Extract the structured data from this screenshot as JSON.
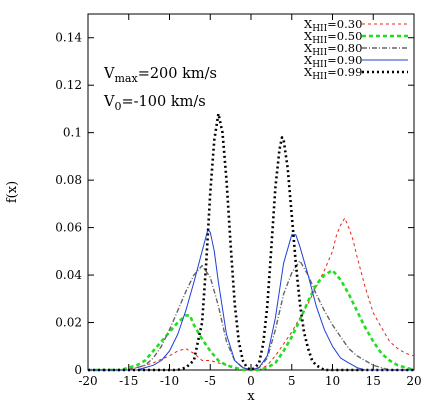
{
  "chart_data": {
    "type": "line",
    "xlabel": "x",
    "ylabel": "f(x)",
    "xlim": [
      -20,
      20
    ],
    "ylim": [
      0,
      0.15
    ],
    "xticks": [
      -20,
      -15,
      -10,
      -5,
      0,
      5,
      10,
      15,
      20
    ],
    "yticks": [
      0,
      0.02,
      0.04,
      0.06,
      0.08,
      0.1,
      0.12,
      0.14
    ],
    "xtick_labels": [
      "-20",
      "-15",
      "-10",
      "-5",
      "0",
      "5",
      "10",
      "15",
      "20"
    ],
    "ytick_labels": [
      "0",
      "0.02",
      "0.04",
      "0.06",
      "0.08",
      "0.1",
      "0.12",
      "0.14"
    ],
    "grid": false,
    "legend_position": "top-right",
    "annotations": [
      {
        "main": "V",
        "sub": "max",
        "rest": "=200 km/s"
      },
      {
        "main": "V",
        "sub": "0",
        "rest": "=-100 km/s"
      }
    ],
    "series": [
      {
        "name": "X_HII=0.30",
        "label": {
          "main": "X",
          "sub": "HII",
          "rest": "=0.30"
        },
        "color": "#e8251d",
        "style": "dashed-thin",
        "points": [
          [
            -20,
            0
          ],
          [
            -16,
            0
          ],
          [
            -14,
            0.001
          ],
          [
            -12,
            0.003
          ],
          [
            -10,
            0.006
          ],
          [
            -9,
            0.008
          ],
          [
            -8,
            0.009
          ],
          [
            -7,
            0.007
          ],
          [
            -6,
            0.004
          ],
          [
            -5,
            0.004
          ],
          [
            -4,
            0.003
          ],
          [
            -3,
            0.002
          ],
          [
            -2,
            0.001
          ],
          [
            -1,
            0
          ],
          [
            1,
            0
          ],
          [
            2,
            0.002
          ],
          [
            3,
            0.006
          ],
          [
            4,
            0.011
          ],
          [
            5,
            0.016
          ],
          [
            6,
            0.022
          ],
          [
            7,
            0.028
          ],
          [
            8,
            0.035
          ],
          [
            9,
            0.042
          ],
          [
            10,
            0.05
          ],
          [
            10.5,
            0.057
          ],
          [
            11,
            0.061
          ],
          [
            11.5,
            0.064
          ],
          [
            12,
            0.06
          ],
          [
            12.5,
            0.055
          ],
          [
            13,
            0.048
          ],
          [
            14,
            0.035
          ],
          [
            15,
            0.024
          ],
          [
            16,
            0.018
          ],
          [
            17,
            0.012
          ],
          [
            18,
            0.009
          ],
          [
            19,
            0.007
          ],
          [
            20,
            0.006
          ]
        ]
      },
      {
        "name": "X_HII=0.50",
        "label": {
          "main": "X",
          "sub": "HII",
          "rest": "=0.50"
        },
        "color": "#22dd22",
        "style": "dashed-thick",
        "points": [
          [
            -20,
            0
          ],
          [
            -16,
            0
          ],
          [
            -15,
            0.001
          ],
          [
            -14,
            0.002
          ],
          [
            -13,
            0.004
          ],
          [
            -12,
            0.008
          ],
          [
            -11,
            0.012
          ],
          [
            -10,
            0.016
          ],
          [
            -9,
            0.02
          ],
          [
            -8,
            0.023
          ],
          [
            -7.5,
            0.023
          ],
          [
            -7,
            0.019
          ],
          [
            -6,
            0.013
          ],
          [
            -5,
            0.008
          ],
          [
            -4,
            0.004
          ],
          [
            -3,
            0.002
          ],
          [
            -2,
            0.001
          ],
          [
            -1,
            0
          ],
          [
            1,
            0
          ],
          [
            2,
            0.001
          ],
          [
            3,
            0.003
          ],
          [
            4,
            0.008
          ],
          [
            5,
            0.014
          ],
          [
            6,
            0.021
          ],
          [
            7,
            0.029
          ],
          [
            8,
            0.036
          ],
          [
            9,
            0.04
          ],
          [
            10,
            0.042
          ],
          [
            11,
            0.038
          ],
          [
            12,
            0.032
          ],
          [
            13,
            0.025
          ],
          [
            14,
            0.018
          ],
          [
            15,
            0.012
          ],
          [
            16,
            0.007
          ],
          [
            17,
            0.004
          ],
          [
            18,
            0.002
          ],
          [
            19,
            0.001
          ],
          [
            20,
            0
          ]
        ]
      },
      {
        "name": "X_HII=0.80",
        "label": {
          "main": "X",
          "sub": "HII",
          "rest": "=0.80"
        },
        "color": "#666666",
        "style": "dash-dot",
        "points": [
          [
            -20,
            0
          ],
          [
            -15,
            0
          ],
          [
            -14,
            0.001
          ],
          [
            -13,
            0.002
          ],
          [
            -12,
            0.005
          ],
          [
            -11,
            0.01
          ],
          [
            -10,
            0.017
          ],
          [
            -9,
            0.025
          ],
          [
            -8,
            0.033
          ],
          [
            -7,
            0.04
          ],
          [
            -6,
            0.044
          ],
          [
            -5,
            0.039
          ],
          [
            -4,
            0.027
          ],
          [
            -3,
            0.012
          ],
          [
            -2,
            0.004
          ],
          [
            -1,
            0.001
          ],
          [
            0,
            0
          ],
          [
            1,
            0.001
          ],
          [
            2,
            0.005
          ],
          [
            3,
            0.017
          ],
          [
            4,
            0.032
          ],
          [
            5,
            0.041
          ],
          [
            6,
            0.046
          ],
          [
            7,
            0.04
          ],
          [
            8,
            0.032
          ],
          [
            9,
            0.025
          ],
          [
            10,
            0.019
          ],
          [
            11,
            0.014
          ],
          [
            12,
            0.009
          ],
          [
            13,
            0.006
          ],
          [
            14,
            0.004
          ],
          [
            15,
            0.002
          ],
          [
            16,
            0.001
          ],
          [
            17,
            0
          ],
          [
            20,
            0
          ]
        ]
      },
      {
        "name": "X_HII=0.90",
        "label": {
          "main": "X",
          "sub": "HII",
          "rest": "=0.90"
        },
        "color": "#1f3fd8",
        "style": "solid",
        "points": [
          [
            -20,
            0
          ],
          [
            -14,
            0
          ],
          [
            -13,
            0.001
          ],
          [
            -12,
            0.002
          ],
          [
            -11,
            0.004
          ],
          [
            -10,
            0.008
          ],
          [
            -9,
            0.015
          ],
          [
            -8,
            0.025
          ],
          [
            -7,
            0.037
          ],
          [
            -6,
            0.05
          ],
          [
            -5.3,
            0.059
          ],
          [
            -5,
            0.058
          ],
          [
            -4.5,
            0.05
          ],
          [
            -4,
            0.037
          ],
          [
            -3,
            0.015
          ],
          [
            -2,
            0.004
          ],
          [
            -1,
            0.001
          ],
          [
            0,
            0
          ],
          [
            1,
            0.001
          ],
          [
            2,
            0.006
          ],
          [
            3,
            0.022
          ],
          [
            4,
            0.045
          ],
          [
            5,
            0.057
          ],
          [
            5.5,
            0.057
          ],
          [
            6,
            0.052
          ],
          [
            7,
            0.04
          ],
          [
            8,
            0.027
          ],
          [
            9,
            0.017
          ],
          [
            10,
            0.01
          ],
          [
            11,
            0.005
          ],
          [
            12,
            0.003
          ],
          [
            13,
            0.001
          ],
          [
            14,
            0
          ],
          [
            20,
            0
          ]
        ]
      },
      {
        "name": "X_HII=0.99",
        "label": {
          "main": "X",
          "sub": "HII",
          "rest": "=0.99"
        },
        "color": "#000000",
        "style": "dotted",
        "points": [
          [
            -20,
            0
          ],
          [
            -9,
            0
          ],
          [
            -8,
            0.001
          ],
          [
            -7,
            0.004
          ],
          [
            -6,
            0.02
          ],
          [
            -5.5,
            0.045
          ],
          [
            -5,
            0.075
          ],
          [
            -4.5,
            0.097
          ],
          [
            -4,
            0.108
          ],
          [
            -3.5,
            0.1
          ],
          [
            -3,
            0.08
          ],
          [
            -2.5,
            0.053
          ],
          [
            -2,
            0.028
          ],
          [
            -1.5,
            0.012
          ],
          [
            -1,
            0.004
          ],
          [
            -0.5,
            0.001
          ],
          [
            0,
            0
          ],
          [
            0.5,
            0.001
          ],
          [
            1,
            0.003
          ],
          [
            1.5,
            0.011
          ],
          [
            2,
            0.027
          ],
          [
            2.5,
            0.052
          ],
          [
            3,
            0.077
          ],
          [
            3.5,
            0.093
          ],
          [
            3.8,
            0.098
          ],
          [
            4,
            0.097
          ],
          [
            4.5,
            0.085
          ],
          [
            5,
            0.065
          ],
          [
            5.5,
            0.045
          ],
          [
            6,
            0.028
          ],
          [
            6.5,
            0.016
          ],
          [
            7,
            0.009
          ],
          [
            7.5,
            0.004
          ],
          [
            8,
            0.002
          ],
          [
            9,
            0
          ],
          [
            20,
            0
          ]
        ]
      }
    ]
  }
}
